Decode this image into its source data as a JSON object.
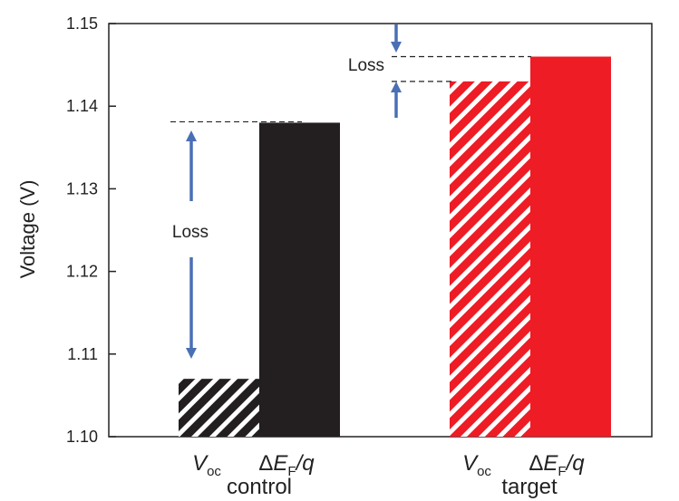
{
  "chart_data": {
    "type": "bar",
    "title": "",
    "ylabel": "Voltage (V)",
    "ylim": [
      1.1,
      1.15
    ],
    "yticks": [
      "1.10",
      "1.11",
      "1.12",
      "1.13",
      "1.14",
      "1.15"
    ],
    "grid": false,
    "categories": [
      {
        "name": "control",
        "bars": [
          {
            "label": "Voc",
            "value": 1.107,
            "pattern": "hatched"
          },
          {
            "label": "ΔEF/q",
            "value": 1.138,
            "pattern": "solid"
          }
        ],
        "color": "#231f20"
      },
      {
        "name": "target",
        "bars": [
          {
            "label": "Voc",
            "value": 1.143,
            "pattern": "hatched"
          },
          {
            "label": "ΔEF/q",
            "value": 1.146,
            "pattern": "solid"
          }
        ],
        "color": "#ee1c25"
      }
    ],
    "annotations": [
      {
        "text": "Loss",
        "group": "control"
      },
      {
        "text": "Loss",
        "group": "target"
      }
    ],
    "labels": {
      "voc_main": "V",
      "voc_sub": "oc",
      "def_delta": "Δ",
      "def_e": "E",
      "def_sub": "F",
      "def_q": "/q"
    },
    "arrow_color": "#4a6fb5"
  }
}
